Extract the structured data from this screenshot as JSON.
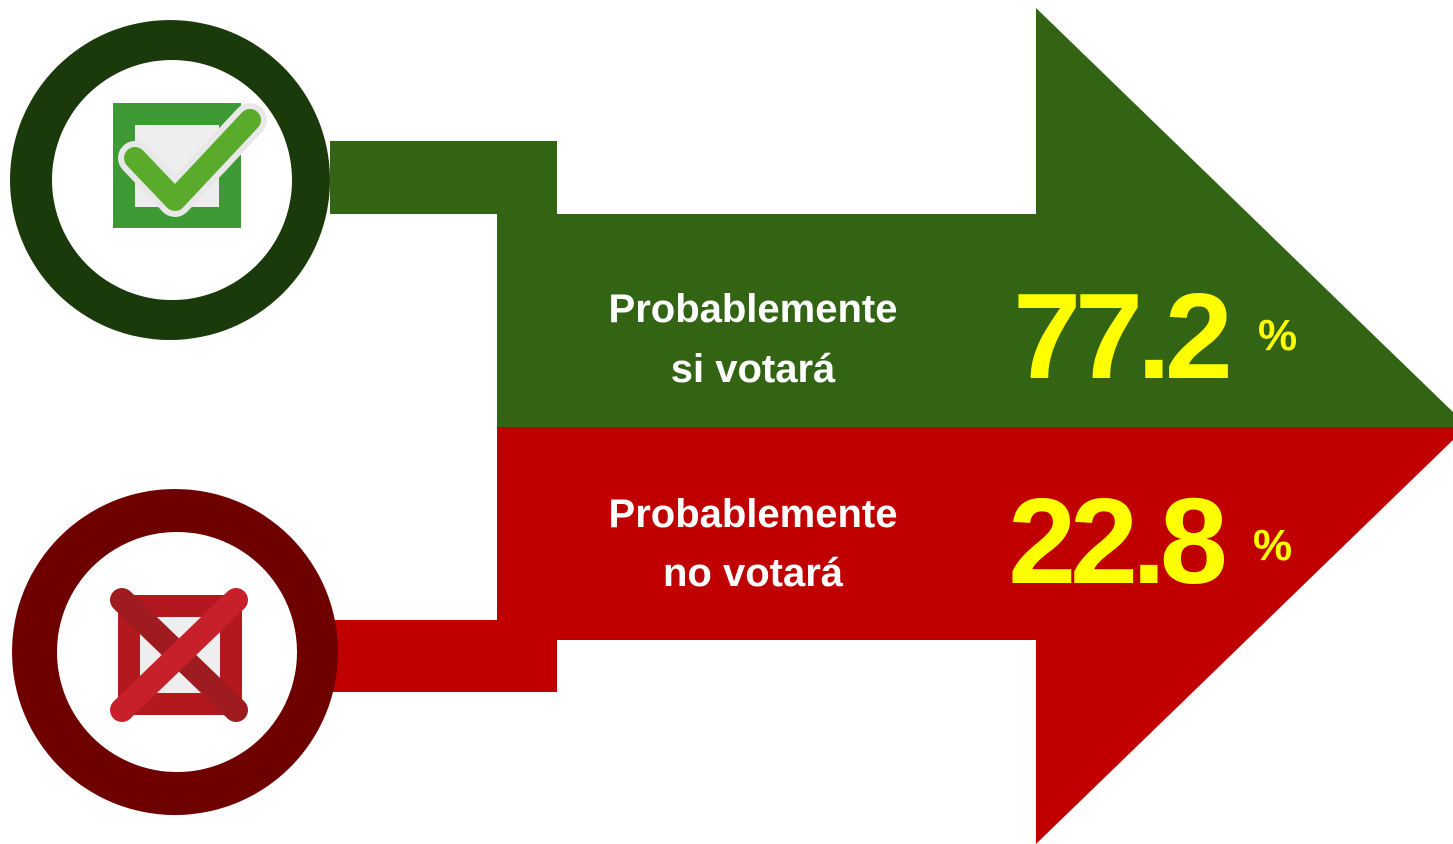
{
  "items": [
    {
      "label_lines": [
        "Probablemente",
        "si votará"
      ],
      "value": "77.2",
      "unit": "%"
    },
    {
      "label_lines": [
        "Probablemente",
        "no votará"
      ],
      "value": "22.8",
      "unit": "%"
    }
  ]
}
